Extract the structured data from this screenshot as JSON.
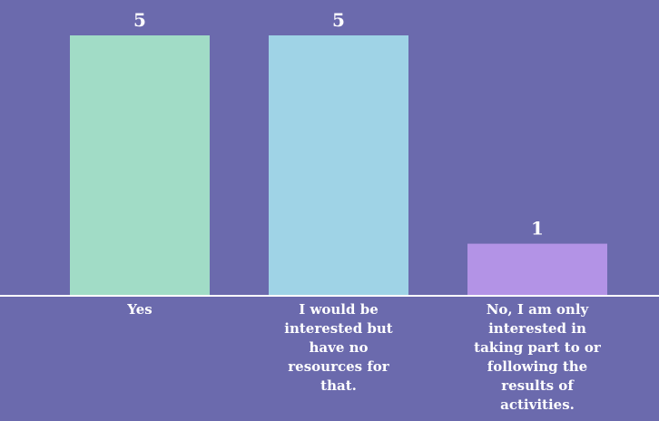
{
  "chart_data": {
    "type": "bar",
    "categories": [
      "Yes",
      "I would be interested but have no resources for that.",
      "No, I am only interested in taking part to or following the results of activities."
    ],
    "category_lines": [
      [
        "Yes"
      ],
      [
        "I would be",
        "interested but",
        "have no",
        "resources for",
        "that."
      ],
      [
        "No, I am only",
        "interested in",
        "taking part to or",
        "following the",
        "results of",
        "activities."
      ]
    ],
    "values": [
      5,
      5,
      1
    ],
    "data_labels": [
      "5",
      "5",
      "1"
    ],
    "colors": [
      "#a1dcc6",
      "#9fd3e6",
      "#b393e6"
    ],
    "background": "#6b6aad",
    "axis_color": "#ffffff",
    "text_color": "#ffffff",
    "ylim": [
      0,
      5
    ],
    "title": "",
    "xlabel": "",
    "ylabel": "",
    "grid": false,
    "legend": "none"
  }
}
